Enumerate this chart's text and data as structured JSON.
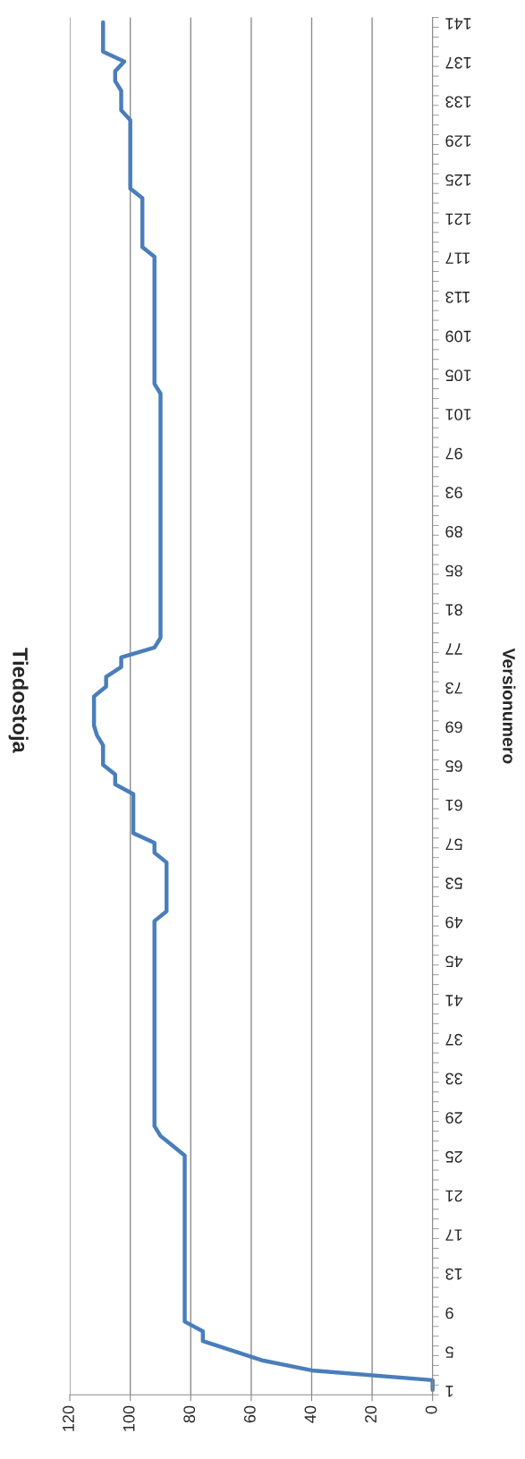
{
  "chart_data": {
    "type": "line",
    "title": "Tiedostoja",
    "ylabel": "Versionumero",
    "categories": [
      "141",
      null,
      null,
      null,
      "137",
      null,
      null,
      null,
      "133",
      null,
      null,
      null,
      "129",
      null,
      null,
      null,
      "125",
      null,
      null,
      null,
      "121",
      null,
      null,
      null,
      "117",
      null,
      null,
      null,
      "113",
      null,
      null,
      null,
      "109",
      null,
      null,
      null,
      "105",
      null,
      null,
      null,
      "101",
      null,
      null,
      null,
      "97",
      null,
      null,
      null,
      "93",
      null,
      null,
      null,
      "89",
      null,
      null,
      null,
      "85",
      null,
      null,
      null,
      "81",
      null,
      null,
      null,
      "77",
      null,
      null,
      null,
      "73",
      null,
      null,
      null,
      "69",
      null,
      null,
      null,
      "65",
      null,
      null,
      null,
      "61",
      null,
      null,
      null,
      "57",
      null,
      null,
      null,
      "53",
      null,
      null,
      null,
      "49",
      null,
      null,
      null,
      "45",
      null,
      null,
      null,
      "41",
      null,
      null,
      null,
      "37",
      null,
      null,
      null,
      "33",
      null,
      null,
      null,
      "29",
      null,
      null,
      null,
      "25",
      null,
      null,
      null,
      "21",
      null,
      null,
      null,
      "17",
      null,
      null,
      null,
      "13",
      null,
      null,
      null,
      "9",
      null,
      null,
      null,
      "5",
      null,
      null,
      null,
      "1"
    ],
    "series": [
      {
        "color": "#4a7ebb",
        "values": [
          109,
          109,
          109,
          109,
          102,
          105,
          105,
          103,
          103,
          103,
          100,
          100,
          100,
          100,
          100,
          100,
          100,
          100,
          96,
          96,
          96,
          96,
          96,
          96,
          92,
          92,
          92,
          92,
          92,
          92,
          92,
          92,
          92,
          92,
          92,
          92,
          92,
          92,
          90,
          90,
          90,
          90,
          90,
          90,
          90,
          90,
          90,
          90,
          90,
          90,
          90,
          90,
          90,
          90,
          90,
          90,
          90,
          90,
          90,
          90,
          90,
          90,
          90,
          90,
          92,
          103,
          103,
          108,
          108,
          112,
          112,
          112,
          112,
          111,
          109,
          109,
          109,
          105,
          105,
          99,
          99,
          99,
          99,
          99,
          92,
          92,
          88,
          88,
          88,
          88,
          88,
          88,
          92,
          92,
          92,
          92,
          92,
          92,
          92,
          92,
          92,
          92,
          92,
          92,
          92,
          92,
          92,
          92,
          92,
          92,
          92,
          92,
          92,
          92,
          90,
          86,
          82,
          82,
          82,
          82,
          82,
          82,
          82,
          82,
          82,
          82,
          82,
          82,
          82,
          82,
          82,
          82,
          82,
          82,
          76,
          76,
          66,
          56,
          40,
          0,
          0
        ]
      }
    ],
    "orientation": "horizontal",
    "xlim": [
      120,
      0
    ],
    "xticks": [
      0,
      20,
      40,
      60,
      80,
      100,
      120
    ],
    "grid": "x"
  }
}
